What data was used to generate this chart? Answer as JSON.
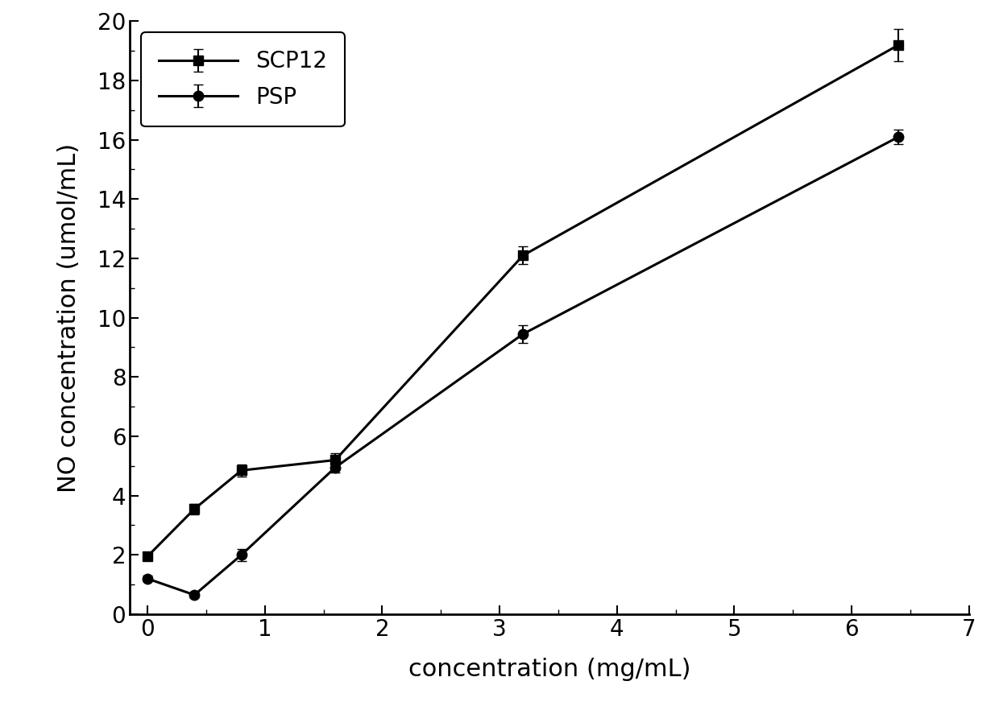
{
  "SCP12_x": [
    0,
    0.4,
    0.8,
    1.6,
    3.2,
    6.4
  ],
  "SCP12_y": [
    1.95,
    3.55,
    4.85,
    5.2,
    12.1,
    19.2
  ],
  "SCP12_yerr": [
    0.12,
    0.18,
    0.2,
    0.22,
    0.3,
    0.55
  ],
  "PSP_x": [
    0,
    0.4,
    0.8,
    1.6,
    3.2,
    6.4
  ],
  "PSP_y": [
    1.2,
    0.65,
    2.0,
    4.95,
    9.45,
    16.1
  ],
  "PSP_yerr": [
    0.1,
    0.08,
    0.2,
    0.18,
    0.3,
    0.25
  ],
  "xlabel": "concentration (mg/mL)",
  "ylabel": "NO concentration (umol/mL)",
  "xlim": [
    -0.15,
    7
  ],
  "ylim": [
    0,
    20
  ],
  "xticks": [
    0,
    1,
    2,
    3,
    4,
    5,
    6,
    7
  ],
  "yticks": [
    0,
    2,
    4,
    6,
    8,
    10,
    12,
    14,
    16,
    18,
    20
  ],
  "legend_labels": [
    "SCP12",
    "PSP"
  ],
  "line_color": "#000000",
  "marker_square": "s",
  "marker_circle": "o",
  "markersize": 9,
  "linewidth": 2.2,
  "capsize": 4,
  "elinewidth": 1.5,
  "background_color": "#ffffff"
}
